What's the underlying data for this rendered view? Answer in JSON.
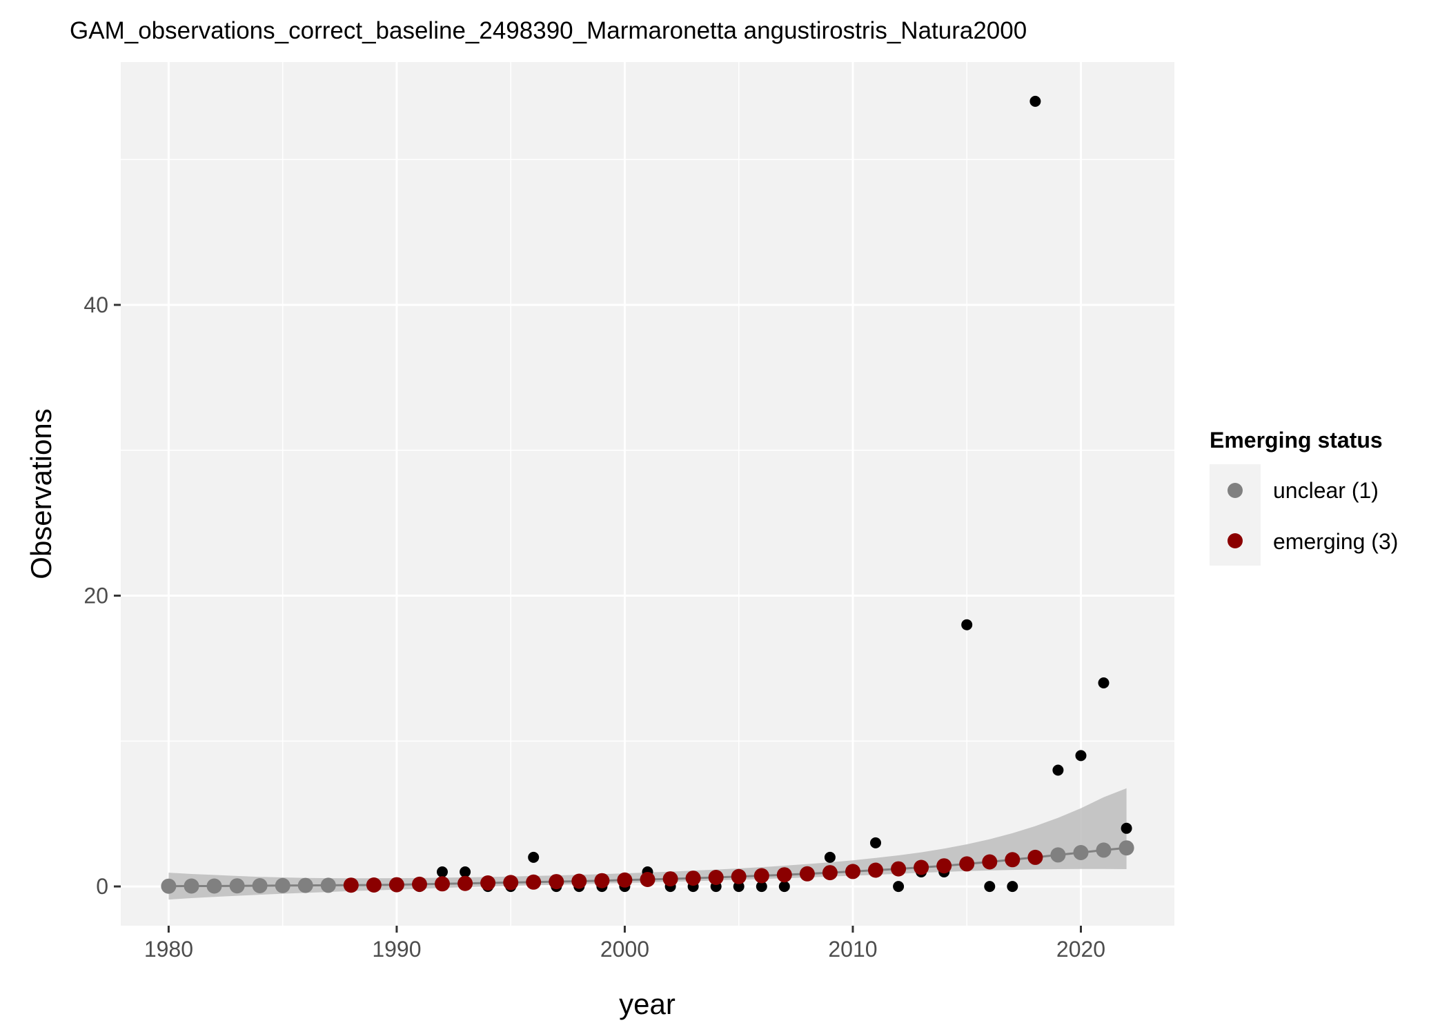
{
  "chart_data": {
    "type": "scatter",
    "title": "GAM_observations_correct_baseline_2498390_Marmaronetta angustirostris_Natura2000",
    "xlabel": "year",
    "ylabel": "Observations",
    "xlim": [
      1977.9,
      2024.1
    ],
    "ylim": [
      -2.7,
      56.7
    ],
    "x_ticks": [
      1980,
      1990,
      2000,
      2010,
      2020
    ],
    "y_ticks": [
      0,
      20,
      40
    ],
    "grid": true,
    "legend": {
      "title": "Emerging status",
      "placement": "right",
      "entries": [
        {
          "label": "unclear (1)",
          "color": "#808080"
        },
        {
          "label": "emerging (3)",
          "color": "#8b0000"
        }
      ]
    },
    "observed": {
      "color": "#000000",
      "x": [
        1980,
        1981,
        1982,
        1983,
        1984,
        1985,
        1986,
        1987,
        1988,
        1989,
        1990,
        1991,
        1992,
        1993,
        1994,
        1995,
        1996,
        1997,
        1998,
        1999,
        2000,
        2001,
        2002,
        2003,
        2004,
        2005,
        2006,
        2007,
        2008,
        2009,
        2010,
        2011,
        2012,
        2013,
        2014,
        2015,
        2016,
        2017,
        2018,
        2019,
        2020,
        2021,
        2022
      ],
      "y": [
        0,
        0,
        0,
        0,
        0,
        0,
        0,
        0,
        0,
        0,
        0,
        0,
        1,
        1,
        0,
        0,
        2,
        0,
        0,
        0,
        0,
        1,
        0,
        0,
        0,
        0,
        0,
        0,
        1,
        2,
        1,
        3,
        0,
        1,
        1,
        18,
        0,
        0,
        54,
        8,
        9,
        14,
        4
      ]
    },
    "fitted": {
      "x": [
        1980,
        1981,
        1982,
        1983,
        1984,
        1985,
        1986,
        1987,
        1988,
        1989,
        1990,
        1991,
        1992,
        1993,
        1994,
        1995,
        1996,
        1997,
        1998,
        1999,
        2000,
        2001,
        2002,
        2003,
        2004,
        2005,
        2006,
        2007,
        2008,
        2009,
        2010,
        2011,
        2012,
        2013,
        2014,
        2015,
        2016,
        2017,
        2018,
        2019,
        2020,
        2021,
        2022
      ],
      "y": [
        0.02,
        0.03,
        0.03,
        0.04,
        0.05,
        0.06,
        0.07,
        0.08,
        0.09,
        0.1,
        0.12,
        0.15,
        0.18,
        0.21,
        0.24,
        0.27,
        0.3,
        0.33,
        0.36,
        0.4,
        0.44,
        0.48,
        0.52,
        0.57,
        0.62,
        0.68,
        0.74,
        0.8,
        0.87,
        0.95,
        1.03,
        1.12,
        1.21,
        1.31,
        1.42,
        1.55,
        1.69,
        1.84,
        2.0,
        2.17,
        2.33,
        2.5,
        2.65
      ],
      "status": [
        1,
        1,
        1,
        1,
        1,
        1,
        1,
        1,
        3,
        3,
        3,
        3,
        3,
        3,
        3,
        3,
        3,
        3,
        3,
        3,
        3,
        3,
        3,
        3,
        3,
        3,
        3,
        3,
        3,
        3,
        3,
        3,
        3,
        3,
        3,
        3,
        3,
        3,
        3,
        1,
        1,
        1,
        1
      ],
      "ci_lower": [
        -0.9,
        -0.8,
        -0.72,
        -0.64,
        -0.57,
        -0.5,
        -0.44,
        -0.38,
        -0.32,
        -0.27,
        -0.22,
        -0.16,
        -0.1,
        -0.05,
        0.0,
        0.04,
        0.08,
        0.12,
        0.16,
        0.2,
        0.24,
        0.28,
        0.32,
        0.36,
        0.41,
        0.46,
        0.51,
        0.56,
        0.62,
        0.68,
        0.74,
        0.8,
        0.87,
        0.94,
        1.0,
        1.06,
        1.1,
        1.14,
        1.17,
        1.19,
        1.2,
        1.2,
        1.19
      ],
      "ci_upper": [
        0.95,
        0.86,
        0.79,
        0.72,
        0.66,
        0.62,
        0.59,
        0.57,
        0.56,
        0.56,
        0.57,
        0.58,
        0.6,
        0.62,
        0.65,
        0.68,
        0.72,
        0.76,
        0.8,
        0.85,
        0.9,
        0.96,
        1.02,
        1.09,
        1.16,
        1.24,
        1.33,
        1.43,
        1.54,
        1.66,
        1.8,
        1.96,
        2.14,
        2.35,
        2.6,
        2.9,
        3.25,
        3.66,
        4.15,
        4.72,
        5.38,
        6.14,
        6.75
      ],
      "ribbon_color": "#bdbdbd",
      "line_color": "#808080"
    }
  }
}
